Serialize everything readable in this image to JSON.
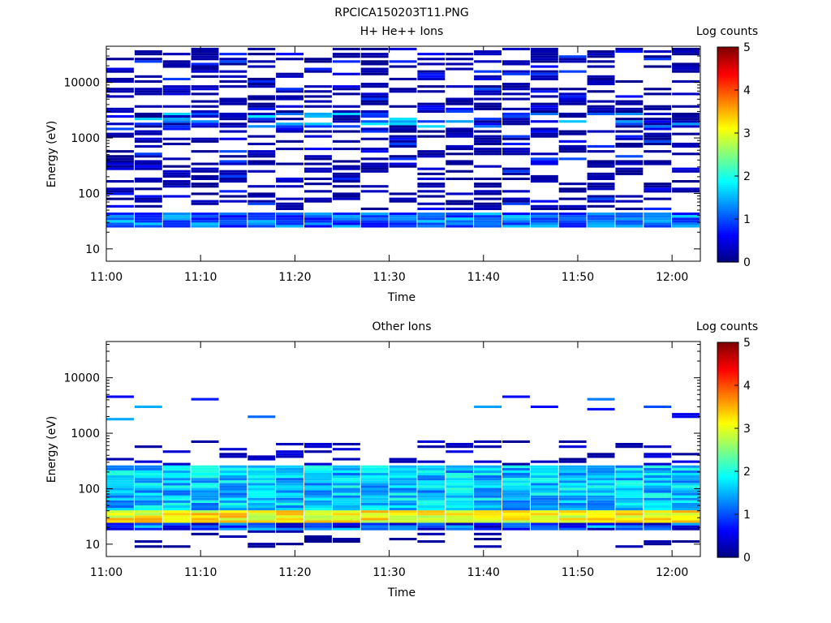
{
  "figure": {
    "title": "RPCICA150203T11.PNG"
  },
  "colors": {
    "colormap": [
      "#000080",
      "#0000ff",
      "#0080ff",
      "#00ffff",
      "#80ff80",
      "#ffff00",
      "#ff8000",
      "#ff0000",
      "#800000"
    ]
  },
  "chart_data": [
    {
      "type": "heatmap",
      "title": "H+ He++ Ions",
      "xlabel": "Time",
      "ylabel": "Energy (eV)",
      "yscale": "log",
      "ylim": [
        6,
        45000
      ],
      "xlim": [
        "11:00",
        "12:03"
      ],
      "x_ticks": [
        "11:00",
        "11:10",
        "11:20",
        "11:30",
        "11:40",
        "11:50",
        "12:00"
      ],
      "y_ticks": [
        "10",
        "100",
        "1000",
        "10000"
      ],
      "x_bins": [
        "11:00",
        "11:03",
        "11:06",
        "11:09",
        "11:12",
        "11:15",
        "11:18",
        "11:21",
        "11:24",
        "11:27",
        "11:30",
        "11:33",
        "11:36",
        "11:39",
        "11:42",
        "11:45",
        "11:48",
        "11:51",
        "11:54",
        "11:57",
        "12:00"
      ],
      "dominant_values": [
        {
          "energy_range_ev": [
            22,
            45
          ],
          "log_counts": 1.3
        },
        {
          "energy_range_ev": [
            1500,
            2500
          ],
          "log_counts": 1.5
        },
        {
          "energy_range_ev": [
            50,
            40000
          ],
          "log_counts": 0.3
        }
      ],
      "colorbar": {
        "label": "Log counts",
        "range": [
          0,
          5
        ],
        "ticks": [
          "0",
          "1",
          "2",
          "3",
          "4",
          "5"
        ]
      }
    },
    {
      "type": "heatmap",
      "title": "Other Ions",
      "xlabel": "Time",
      "ylabel": "Energy (eV)",
      "yscale": "log",
      "ylim": [
        6,
        45000
      ],
      "xlim": [
        "11:00",
        "12:03"
      ],
      "x_ticks": [
        "11:00",
        "11:10",
        "11:20",
        "11:30",
        "11:40",
        "11:50",
        "12:00"
      ],
      "y_ticks": [
        "10",
        "100",
        "1000",
        "10000"
      ],
      "x_bins": [
        "11:00",
        "11:03",
        "11:06",
        "11:09",
        "11:12",
        "11:15",
        "11:18",
        "11:21",
        "11:24",
        "11:27",
        "11:30",
        "11:33",
        "11:36",
        "11:39",
        "11:42",
        "11:45",
        "11:48",
        "11:51",
        "11:54",
        "11:57",
        "12:00"
      ],
      "dominant_values": [
        {
          "energy_range_ev": [
            22,
            40
          ],
          "log_counts": 3.3
        },
        {
          "energy_range_ev": [
            40,
            250
          ],
          "log_counts": 1.7
        },
        {
          "energy_range_ev": [
            17,
            22
          ],
          "log_counts": 1.0
        },
        {
          "energy_range_ev": [
            1500,
            4500
          ],
          "log_counts": 1.2
        }
      ],
      "colorbar": {
        "label": "Log counts",
        "range": [
          0,
          5
        ],
        "ticks": [
          "0",
          "1",
          "2",
          "3",
          "4",
          "5"
        ]
      }
    }
  ]
}
